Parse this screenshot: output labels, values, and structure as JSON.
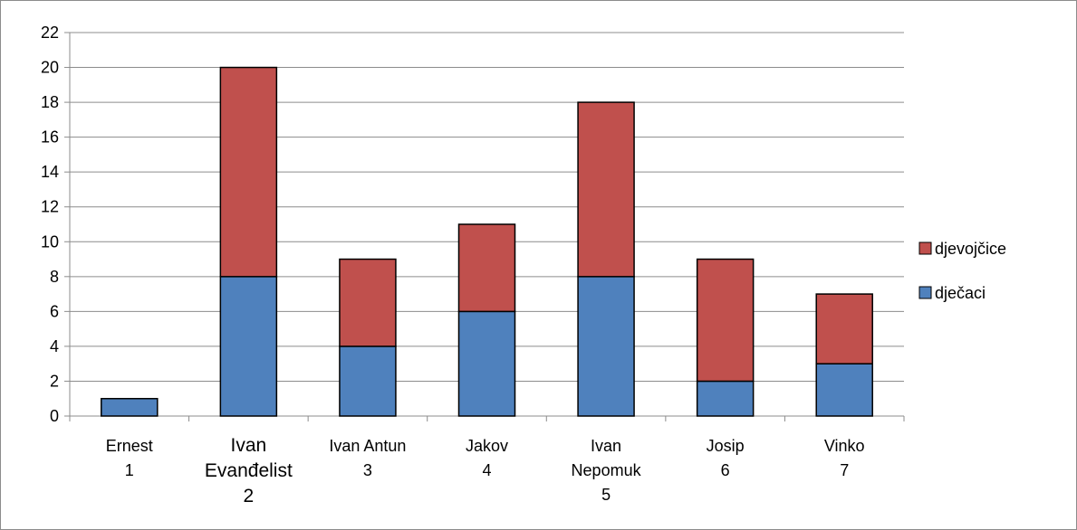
{
  "chart_data": {
    "type": "bar",
    "stacked": true,
    "title": "",
    "xlabel": "",
    "ylabel": "",
    "ylim": [
      0,
      22
    ],
    "yticks": [
      0,
      2,
      4,
      6,
      8,
      10,
      12,
      14,
      16,
      18,
      20,
      22
    ],
    "grid": true,
    "legend_position": "right",
    "categories": [
      [
        "Ernest",
        "1"
      ],
      [
        "Ivan",
        "Evanđelist",
        "2"
      ],
      [
        "Ivan Antun",
        "3"
      ],
      [
        "Jakov",
        "4"
      ],
      [
        "Ivan",
        "Nepomuk",
        "5"
      ],
      [
        "Josip",
        "6"
      ],
      [
        "Vinko",
        "7"
      ]
    ],
    "series": [
      {
        "name": "dječaci",
        "color": "#4f81bd",
        "values": [
          1,
          8,
          4,
          6,
          8,
          2,
          3
        ]
      },
      {
        "name": "djevojčice",
        "color": "#c0504d",
        "values": [
          0,
          12,
          5,
          5,
          10,
          7,
          4
        ]
      }
    ]
  }
}
